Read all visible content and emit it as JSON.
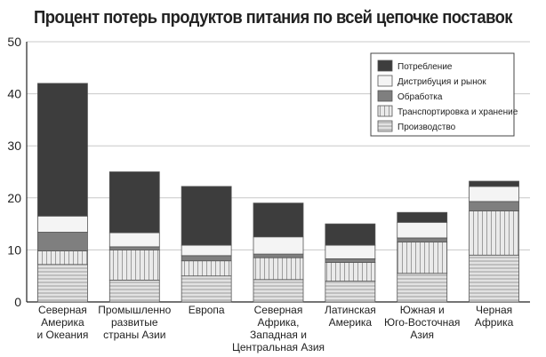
{
  "chart_data": {
    "type": "bar",
    "stacked": true,
    "title": "Процент потерь продуктов питания по всей цепочке поставок",
    "xlabel": "",
    "ylabel": "",
    "ylim": [
      0,
      50
    ],
    "yticks": [
      "0",
      "10",
      "20",
      "30",
      "40",
      "50"
    ],
    "grid": "horizontal",
    "legend_position": "top-right",
    "categories": [
      [
        "Северная",
        "Америка",
        "и Океания"
      ],
      [
        "Промышленно",
        "развитые",
        "страны Азии"
      ],
      [
        "Европа"
      ],
      [
        "Северная",
        "Африка,",
        "Западная и",
        "Центральная Азия"
      ],
      [
        "Латинская",
        "Америка"
      ],
      [
        "Южная и",
        "Юго-Восточная",
        "Азия"
      ],
      [
        "Черная",
        "Африка"
      ]
    ],
    "series": [
      {
        "name": "Производство",
        "values": [
          7.2,
          4.2,
          5.0,
          4.3,
          4.0,
          5.5,
          9.0
        ]
      },
      {
        "name": "Транспортировка и хранение",
        "values": [
          2.6,
          5.8,
          2.9,
          4.2,
          3.6,
          6.0,
          8.5
        ]
      },
      {
        "name": "Обработка",
        "values": [
          3.6,
          0.6,
          1.0,
          0.7,
          0.7,
          0.8,
          1.8
        ]
      },
      {
        "name": "Дистрибуция и рынок",
        "values": [
          3.1,
          2.7,
          2.0,
          3.3,
          2.6,
          3.0,
          2.9
        ]
      },
      {
        "name": "Потребление",
        "values": [
          25.5,
          11.7,
          11.3,
          6.5,
          4.1,
          1.9,
          1.0
        ]
      }
    ],
    "legend_order": [
      "Потребление",
      "Дистрибуция и рынок",
      "Обработка",
      "Транспортировка и хранение",
      "Производство"
    ],
    "colors": {
      "Потребление": "#3d3d3d",
      "Дистрибуция и рынок": "#f4f4f4",
      "Обработка": "#7f7f7f",
      "Транспортировка и хранение": "#eaeaea",
      "Производство": "#e2e2e2",
      "axis": "#222222",
      "grid": "#c8c8c8",
      "plot_background": "#ffffff"
    }
  }
}
